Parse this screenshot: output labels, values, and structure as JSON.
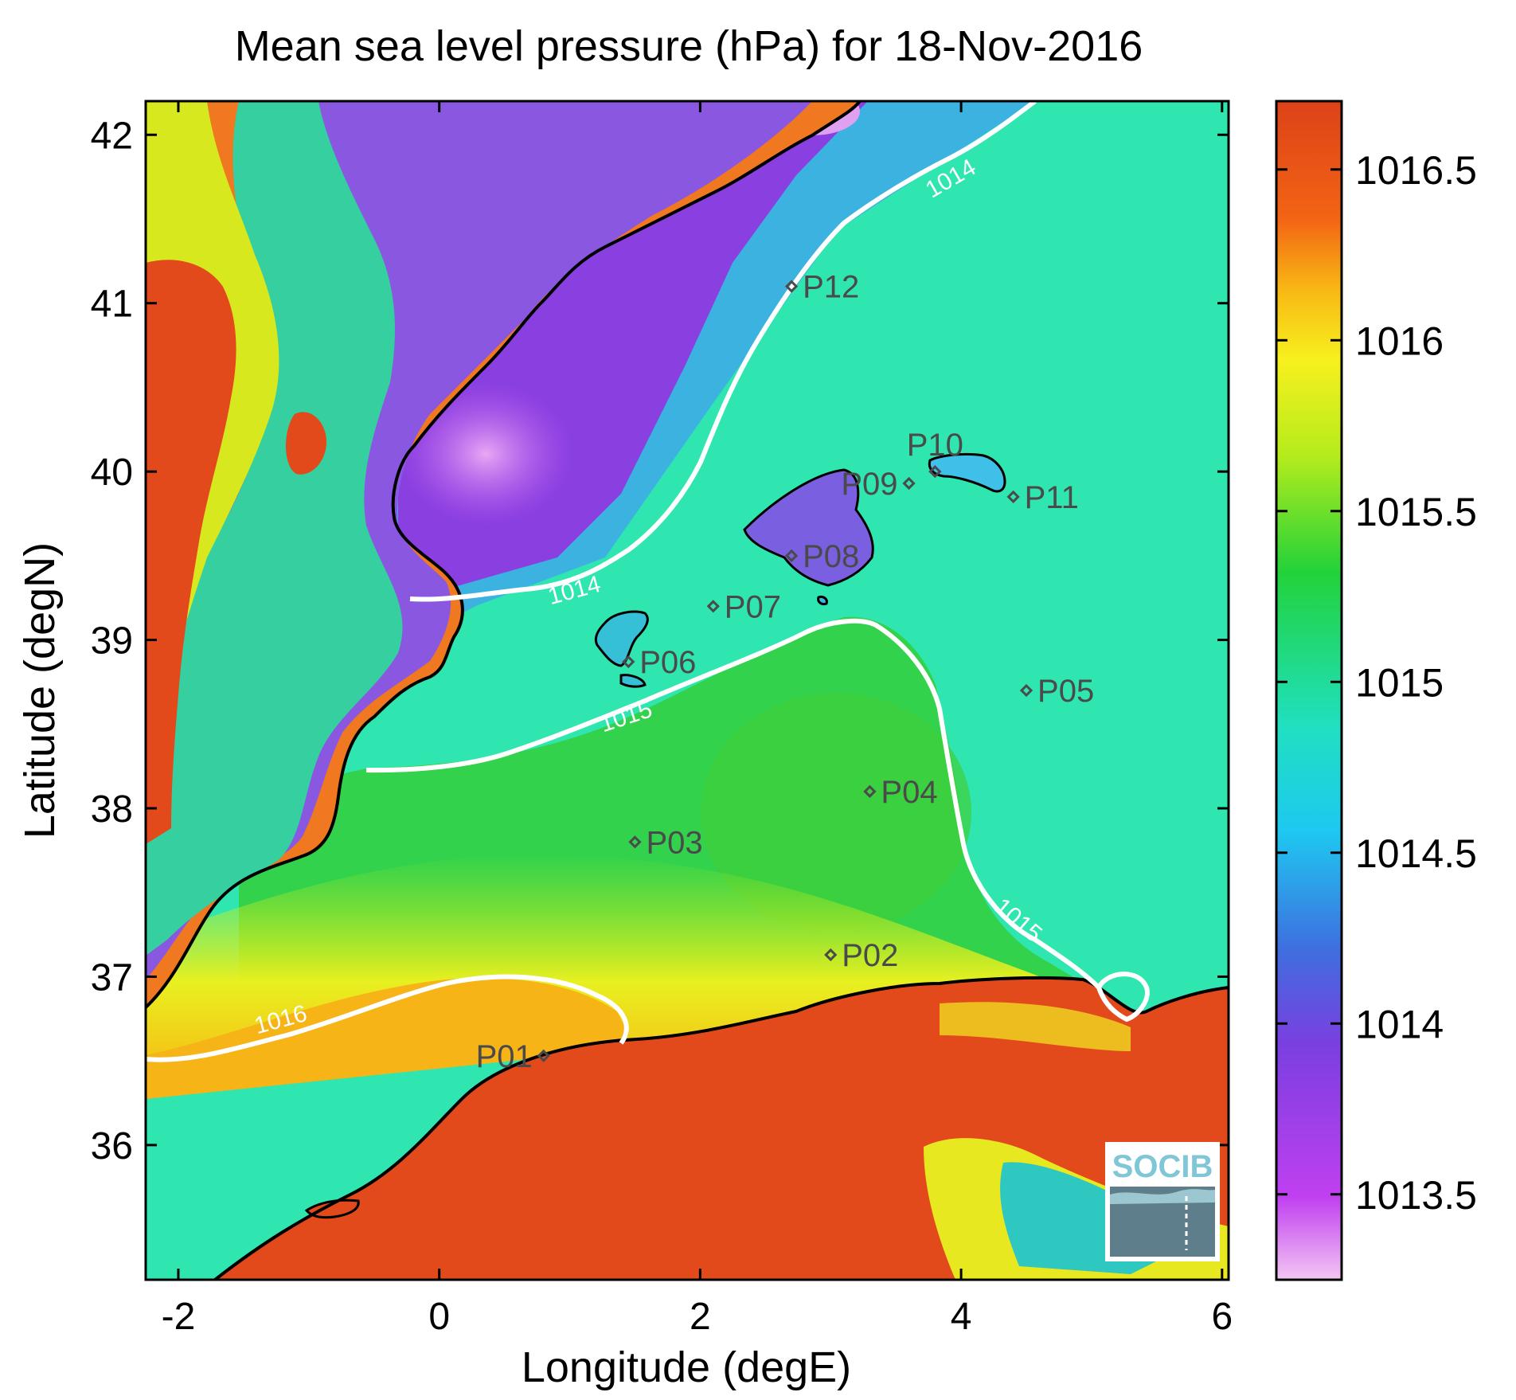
{
  "title": "Mean sea level pressure (hPa) for 18-Nov-2016",
  "map": {
    "xlabel": "Longitude (degE)",
    "ylabel": "Latitude (degN)",
    "xlim": [
      -2.25,
      6.05
    ],
    "ylim": [
      35.2,
      42.2
    ],
    "xticks": [
      {
        "value": -2,
        "label": "-2"
      },
      {
        "value": 0,
        "label": "0"
      },
      {
        "value": 2,
        "label": "2"
      },
      {
        "value": 4,
        "label": "4"
      },
      {
        "value": 6,
        "label": "6"
      }
    ],
    "yticks": [
      {
        "value": 36,
        "label": "36"
      },
      {
        "value": 37,
        "label": "37"
      },
      {
        "value": 38,
        "label": "38"
      },
      {
        "value": 39,
        "label": "39"
      },
      {
        "value": 40,
        "label": "40"
      },
      {
        "value": 41,
        "label": "41"
      },
      {
        "value": 42,
        "label": "42"
      }
    ],
    "stations": [
      {
        "id": "P01",
        "lon": 0.8,
        "lat": 36.53,
        "label_side": "left"
      },
      {
        "id": "P02",
        "lon": 3.0,
        "lat": 37.13,
        "label_side": "right"
      },
      {
        "id": "P03",
        "lon": 1.5,
        "lat": 37.8,
        "label_side": "right"
      },
      {
        "id": "P04",
        "lon": 3.3,
        "lat": 38.1,
        "label_side": "right"
      },
      {
        "id": "P05",
        "lon": 4.5,
        "lat": 38.7,
        "label_side": "right"
      },
      {
        "id": "P06",
        "lon": 1.45,
        "lat": 38.87,
        "label_side": "right"
      },
      {
        "id": "P07",
        "lon": 2.1,
        "lat": 39.2,
        "label_side": "right"
      },
      {
        "id": "P08",
        "lon": 2.7,
        "lat": 39.5,
        "label_side": "right"
      },
      {
        "id": "P09",
        "lon": 3.6,
        "lat": 39.93,
        "label_side": "left"
      },
      {
        "id": "P10",
        "lon": 3.8,
        "lat": 40.0,
        "label_side": "above"
      },
      {
        "id": "P11",
        "lon": 4.4,
        "lat": 39.85,
        "label_side": "right"
      },
      {
        "id": "P12",
        "lon": 2.7,
        "lat": 41.1,
        "label_side": "right"
      }
    ],
    "contours": [
      {
        "level": "1014",
        "label_positions": [
          [
            1.05,
            39.25
          ],
          [
            3.95,
            41.7
          ]
        ]
      },
      {
        "level": "1015",
        "label_positions": [
          [
            1.45,
            38.5
          ],
          [
            4.4,
            37.3
          ]
        ]
      },
      {
        "level": "1016",
        "label_positions": [
          [
            -1.2,
            36.7
          ]
        ]
      }
    ],
    "colormap": "jet-like (magenta low to red high)",
    "coastline_color": "#000000",
    "contour_color": "#ffffff"
  },
  "colorbar": {
    "range": [
      1013.25,
      1016.7
    ],
    "ticks": [
      {
        "value": 1013.5,
        "label": "1013.5"
      },
      {
        "value": 1014,
        "label": "1014"
      },
      {
        "value": 1014.5,
        "label": "1014.5"
      },
      {
        "value": 1015,
        "label": "1015"
      },
      {
        "value": 1015.5,
        "label": "1015.5"
      },
      {
        "value": 1016,
        "label": "1016"
      },
      {
        "value": 1016.5,
        "label": "1016.5"
      }
    ],
    "colors": [
      "#f3c6f3",
      "#c040f0",
      "#7a3fe0",
      "#3f6ee0",
      "#1ec8f0",
      "#20e0c0",
      "#22d23a",
      "#b6ec1c",
      "#f7f01e",
      "#f8b814",
      "#f36414",
      "#dd4218"
    ]
  },
  "logo": {
    "text": "SOCIB"
  }
}
